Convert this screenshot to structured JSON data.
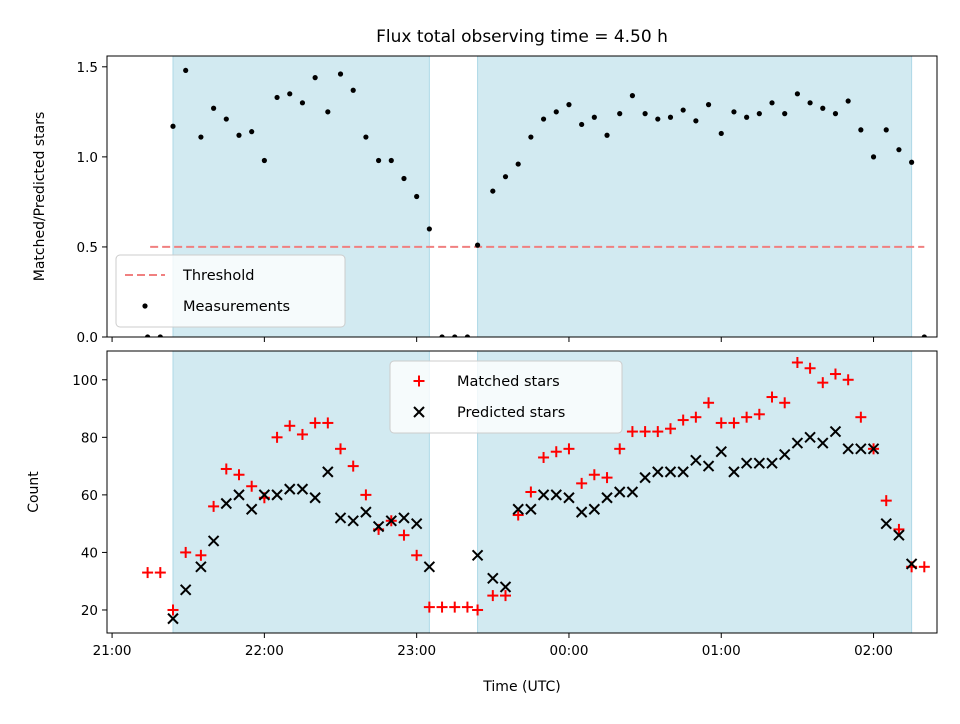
{
  "chart_data": {
    "title": "Flux total observing time = 4.50 h",
    "xlabel": "Time (UTC)",
    "x_start_label": "21:00",
    "x_range_minutes": [
      -2,
      325
    ],
    "x_ticks": [
      {
        "t": 0,
        "label": "21:00"
      },
      {
        "t": 60,
        "label": "22:00"
      },
      {
        "t": 120,
        "label": "23:00"
      },
      {
        "t": 180,
        "label": "00:00"
      },
      {
        "t": 240,
        "label": "01:00"
      },
      {
        "t": 300,
        "label": "02:00"
      }
    ],
    "shaded_intervals": [
      [
        24,
        125
      ],
      [
        144,
        315
      ]
    ],
    "shade_color": "#add8e6",
    "panels": [
      {
        "type": "scatter",
        "ylabel": "Matched/Predicted stars",
        "ylim": [
          0,
          1.56
        ],
        "yticks": [
          0.0,
          0.5,
          1.0,
          1.5
        ],
        "ytick_labels": [
          "0.0",
          "0.5",
          "1.0",
          "1.5"
        ],
        "legend_position": "lower-left",
        "threshold": {
          "name": "Threshold",
          "value": 0.5,
          "x_range": [
            15,
            320
          ],
          "color": "#f08080",
          "style": "dashed"
        },
        "series": [
          {
            "name": "Measurements",
            "marker": "dot",
            "color": "#000000",
            "points": [
              [
                14,
                0.0
              ],
              [
                19,
                0.0
              ],
              [
                24,
                1.17
              ],
              [
                29,
                1.48
              ],
              [
                35,
                1.11
              ],
              [
                40,
                1.27
              ],
              [
                45,
                1.21
              ],
              [
                50,
                1.12
              ],
              [
                55,
                1.14
              ],
              [
                60,
                0.98
              ],
              [
                65,
                1.33
              ],
              [
                70,
                1.35
              ],
              [
                75,
                1.3
              ],
              [
                80,
                1.44
              ],
              [
                85,
                1.25
              ],
              [
                90,
                1.46
              ],
              [
                95,
                1.37
              ],
              [
                100,
                1.11
              ],
              [
                105,
                0.98
              ],
              [
                110,
                0.98
              ],
              [
                115,
                0.88
              ],
              [
                120,
                0.78
              ],
              [
                125,
                0.6
              ],
              [
                130,
                0.0
              ],
              [
                135,
                0.0
              ],
              [
                140,
                0.0
              ],
              [
                144,
                0.51
              ],
              [
                150,
                0.81
              ],
              [
                155,
                0.89
              ],
              [
                160,
                0.96
              ],
              [
                165,
                1.11
              ],
              [
                170,
                1.21
              ],
              [
                175,
                1.25
              ],
              [
                180,
                1.29
              ],
              [
                185,
                1.18
              ],
              [
                190,
                1.22
              ],
              [
                195,
                1.12
              ],
              [
                200,
                1.24
              ],
              [
                205,
                1.34
              ],
              [
                210,
                1.24
              ],
              [
                215,
                1.21
              ],
              [
                220,
                1.22
              ],
              [
                225,
                1.26
              ],
              [
                230,
                1.2
              ],
              [
                235,
                1.29
              ],
              [
                240,
                1.13
              ],
              [
                245,
                1.25
              ],
              [
                250,
                1.22
              ],
              [
                255,
                1.24
              ],
              [
                260,
                1.3
              ],
              [
                265,
                1.24
              ],
              [
                270,
                1.35
              ],
              [
                275,
                1.3
              ],
              [
                280,
                1.27
              ],
              [
                285,
                1.24
              ],
              [
                290,
                1.31
              ],
              [
                295,
                1.15
              ],
              [
                300,
                1.0
              ],
              [
                305,
                1.15
              ],
              [
                310,
                1.04
              ],
              [
                315,
                0.97
              ],
              [
                320,
                0.0
              ]
            ]
          }
        ]
      },
      {
        "type": "scatter",
        "ylabel": "Count",
        "ylim": [
          12,
          110
        ],
        "yticks": [
          20,
          40,
          60,
          80,
          100
        ],
        "ytick_labels": [
          "20",
          "40",
          "60",
          "80",
          "100"
        ],
        "legend_position": "upper-center",
        "series": [
          {
            "name": "Matched stars",
            "marker": "plus",
            "color": "#ff0000",
            "points": [
              [
                14,
                33
              ],
              [
                19,
                33
              ],
              [
                24,
                20
              ],
              [
                29,
                40
              ],
              [
                35,
                39
              ],
              [
                40,
                56
              ],
              [
                45,
                69
              ],
              [
                50,
                67
              ],
              [
                55,
                63
              ],
              [
                60,
                59
              ],
              [
                65,
                80
              ],
              [
                70,
                84
              ],
              [
                75,
                81
              ],
              [
                80,
                85
              ],
              [
                85,
                85
              ],
              [
                90,
                76
              ],
              [
                95,
                70
              ],
              [
                100,
                60
              ],
              [
                105,
                48
              ],
              [
                110,
                51
              ],
              [
                115,
                46
              ],
              [
                120,
                39
              ],
              [
                125,
                21
              ],
              [
                130,
                21
              ],
              [
                135,
                21
              ],
              [
                140,
                21
              ],
              [
                144,
                20
              ],
              [
                150,
                25
              ],
              [
                155,
                25
              ],
              [
                160,
                53
              ],
              [
                165,
                61
              ],
              [
                170,
                73
              ],
              [
                175,
                75
              ],
              [
                180,
                76
              ],
              [
                185,
                64
              ],
              [
                190,
                67
              ],
              [
                195,
                66
              ],
              [
                200,
                76
              ],
              [
                205,
                82
              ],
              [
                210,
                82
              ],
              [
                215,
                82
              ],
              [
                220,
                83
              ],
              [
                225,
                86
              ],
              [
                230,
                87
              ],
              [
                235,
                92
              ],
              [
                240,
                85
              ],
              [
                245,
                85
              ],
              [
                250,
                87
              ],
              [
                255,
                88
              ],
              [
                260,
                94
              ],
              [
                265,
                92
              ],
              [
                270,
                106
              ],
              [
                275,
                104
              ],
              [
                280,
                99
              ],
              [
                285,
                102
              ],
              [
                290,
                100
              ],
              [
                295,
                87
              ],
              [
                300,
                76
              ],
              [
                305,
                58
              ],
              [
                310,
                48
              ],
              [
                315,
                35
              ],
              [
                320,
                35
              ]
            ]
          },
          {
            "name": "Predicted stars",
            "marker": "x",
            "color": "#000000",
            "points": [
              [
                24,
                17
              ],
              [
                29,
                27
              ],
              [
                35,
                35
              ],
              [
                40,
                44
              ],
              [
                45,
                57
              ],
              [
                50,
                60
              ],
              [
                55,
                55
              ],
              [
                60,
                60
              ],
              [
                65,
                60
              ],
              [
                70,
                62
              ],
              [
                75,
                62
              ],
              [
                80,
                59
              ],
              [
                85,
                68
              ],
              [
                90,
                52
              ],
              [
                95,
                51
              ],
              [
                100,
                54
              ],
              [
                105,
                49
              ],
              [
                110,
                51
              ],
              [
                115,
                52
              ],
              [
                120,
                50
              ],
              [
                125,
                35
              ],
              [
                144,
                39
              ],
              [
                150,
                31
              ],
              [
                155,
                28
              ],
              [
                160,
                55
              ],
              [
                165,
                55
              ],
              [
                170,
                60
              ],
              [
                175,
                60
              ],
              [
                180,
                59
              ],
              [
                185,
                54
              ],
              [
                190,
                55
              ],
              [
                195,
                59
              ],
              [
                200,
                61
              ],
              [
                205,
                61
              ],
              [
                210,
                66
              ],
              [
                215,
                68
              ],
              [
                220,
                68
              ],
              [
                225,
                68
              ],
              [
                230,
                72
              ],
              [
                235,
                70
              ],
              [
                240,
                75
              ],
              [
                245,
                68
              ],
              [
                250,
                71
              ],
              [
                255,
                71
              ],
              [
                260,
                71
              ],
              [
                265,
                74
              ],
              [
                270,
                78
              ],
              [
                275,
                80
              ],
              [
                280,
                78
              ],
              [
                285,
                82
              ],
              [
                290,
                76
              ],
              [
                295,
                76
              ],
              [
                300,
                76
              ],
              [
                305,
                50
              ],
              [
                310,
                46
              ],
              [
                315,
                36
              ]
            ]
          }
        ]
      }
    ]
  }
}
